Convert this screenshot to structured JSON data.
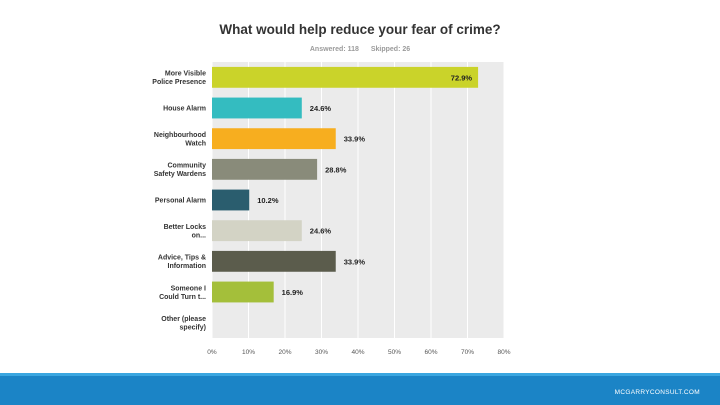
{
  "header": {
    "title": "What would help reduce your fear of crime?",
    "answered": "Answered: 118",
    "skipped": "Skipped: 26"
  },
  "footer": {
    "brand": "MCGARRYCONSULT.COM",
    "bar_color": "#1b84c6"
  },
  "chart_data": {
    "type": "bar",
    "orientation": "horizontal",
    "title": "What would help reduce your fear of crime?",
    "xlabel": "",
    "ylabel": "",
    "xlim": [
      0,
      80
    ],
    "ticks": [
      0,
      10,
      20,
      30,
      40,
      50,
      60,
      70,
      80
    ],
    "tick_labels": [
      "0%",
      "10%",
      "20%",
      "30%",
      "40%",
      "50%",
      "60%",
      "70%",
      "80%"
    ],
    "grid": true,
    "legend": "none",
    "categories": [
      [
        "More Visible",
        "Police Presence"
      ],
      [
        "House Alarm"
      ],
      [
        "Neighbourhood",
        "Watch"
      ],
      [
        "Community",
        "Safety Wardens"
      ],
      [
        "Personal Alarm"
      ],
      [
        "Better Locks",
        "on..."
      ],
      [
        "Advice, Tips &",
        "Information"
      ],
      [
        "Someone I",
        "Could Turn t..."
      ],
      [
        "Other (please",
        "specify)"
      ]
    ],
    "values": [
      72.9,
      24.6,
      33.9,
      28.8,
      10.2,
      24.6,
      33.9,
      16.9,
      0
    ],
    "data_labels": [
      "72.9%",
      "24.6%",
      "33.9%",
      "28.8%",
      "10.2%",
      "24.6%",
      "33.9%",
      "16.9%",
      ""
    ],
    "colors": [
      "#cad32a",
      "#34bcc0",
      "#f7ae1f",
      "#898b7a",
      "#2a5d6e",
      "#d3d3c5",
      "#5b5c4c",
      "#a4bf3a",
      "#cccccc"
    ],
    "plot_background": "#ebebeb"
  }
}
